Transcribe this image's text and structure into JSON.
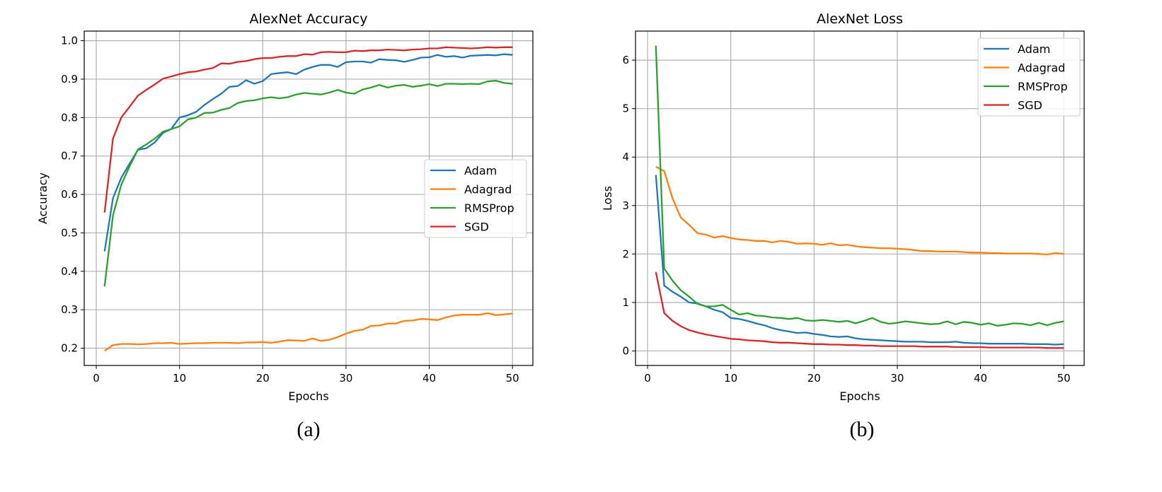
{
  "colors": {
    "Adam": "#1f77b4",
    "Adagrad": "#ff7f0e",
    "RMSProp": "#2ca02c",
    "SGD": "#d62728",
    "grid": "#b0b0b0"
  },
  "chart_data": [
    {
      "type": "line",
      "title": "AlexNet Accuracy",
      "xlabel": "Epochs",
      "ylabel": "Accuracy",
      "panel_label": "(a)",
      "xlim": [
        -1.45,
        52.45
      ],
      "ylim": [
        0.155,
        1.025
      ],
      "xticks": [
        0,
        10,
        20,
        30,
        40,
        50
      ],
      "yticks": [
        0.2,
        0.3,
        0.4,
        0.5,
        0.6,
        0.7,
        0.8,
        0.9,
        1.0
      ],
      "ytick_labels": [
        "0.2",
        "0.3",
        "0.4",
        "0.5",
        "0.6",
        "0.7",
        "0.8",
        "0.9",
        "1.0"
      ],
      "grid": true,
      "legend": "center-right",
      "x": [
        1,
        2,
        3,
        4,
        5,
        6,
        7,
        8,
        9,
        10,
        11,
        12,
        13,
        14,
        15,
        16,
        17,
        18,
        19,
        20,
        21,
        22,
        23,
        24,
        25,
        26,
        27,
        28,
        29,
        30,
        31,
        32,
        33,
        34,
        35,
        36,
        37,
        38,
        39,
        40,
        41,
        42,
        43,
        44,
        45,
        46,
        47,
        48,
        49,
        50
      ],
      "series": [
        {
          "name": "Adam",
          "values": [
            0.452,
            0.59,
            0.643,
            0.68,
            0.716,
            0.72,
            0.735,
            0.76,
            0.77,
            0.8,
            0.806,
            0.815,
            0.833,
            0.848,
            0.862,
            0.88,
            0.882,
            0.897,
            0.888,
            0.895,
            0.913,
            0.916,
            0.918,
            0.913,
            0.925,
            0.932,
            0.937,
            0.937,
            0.932,
            0.944,
            0.946,
            0.946,
            0.943,
            0.952,
            0.95,
            0.949,
            0.945,
            0.95,
            0.956,
            0.957,
            0.963,
            0.958,
            0.96,
            0.956,
            0.961,
            0.962,
            0.963,
            0.962,
            0.965,
            0.963
          ]
        },
        {
          "name": "Adagrad",
          "values": [
            0.193,
            0.208,
            0.211,
            0.211,
            0.21,
            0.211,
            0.213,
            0.213,
            0.214,
            0.211,
            0.212,
            0.213,
            0.213,
            0.214,
            0.214,
            0.214,
            0.213,
            0.215,
            0.215,
            0.216,
            0.214,
            0.217,
            0.221,
            0.22,
            0.219,
            0.225,
            0.219,
            0.222,
            0.229,
            0.238,
            0.245,
            0.248,
            0.258,
            0.259,
            0.264,
            0.264,
            0.271,
            0.272,
            0.276,
            0.275,
            0.273,
            0.28,
            0.285,
            0.287,
            0.287,
            0.287,
            0.291,
            0.286,
            0.288,
            0.29
          ]
        },
        {
          "name": "RMSProp",
          "values": [
            0.361,
            0.545,
            0.625,
            0.673,
            0.717,
            0.73,
            0.745,
            0.763,
            0.77,
            0.777,
            0.795,
            0.8,
            0.812,
            0.813,
            0.82,
            0.825,
            0.838,
            0.843,
            0.845,
            0.85,
            0.853,
            0.85,
            0.853,
            0.86,
            0.864,
            0.862,
            0.86,
            0.865,
            0.872,
            0.865,
            0.862,
            0.873,
            0.878,
            0.885,
            0.878,
            0.883,
            0.885,
            0.88,
            0.883,
            0.887,
            0.882,
            0.888,
            0.888,
            0.887,
            0.888,
            0.887,
            0.894,
            0.896,
            0.89,
            0.888
          ]
        },
        {
          "name": "SGD",
          "values": [
            0.553,
            0.745,
            0.8,
            0.828,
            0.857,
            0.872,
            0.886,
            0.901,
            0.907,
            0.913,
            0.918,
            0.92,
            0.925,
            0.929,
            0.941,
            0.94,
            0.945,
            0.947,
            0.952,
            0.955,
            0.955,
            0.958,
            0.96,
            0.96,
            0.965,
            0.964,
            0.97,
            0.971,
            0.97,
            0.97,
            0.974,
            0.973,
            0.975,
            0.975,
            0.977,
            0.976,
            0.975,
            0.977,
            0.978,
            0.98,
            0.98,
            0.983,
            0.982,
            0.981,
            0.98,
            0.981,
            0.983,
            0.982,
            0.983,
            0.983
          ]
        }
      ]
    },
    {
      "type": "line",
      "title": "AlexNet Loss",
      "xlabel": "Epochs",
      "ylabel": "Loss",
      "panel_label": "(b)",
      "xlim": [
        -1.45,
        52.45
      ],
      "ylim": [
        -0.3,
        6.6
      ],
      "xticks": [
        0,
        10,
        20,
        30,
        40,
        50
      ],
      "yticks": [
        0,
        1,
        2,
        3,
        4,
        5,
        6
      ],
      "ytick_labels": [
        "0",
        "1",
        "2",
        "3",
        "4",
        "5",
        "6"
      ],
      "grid": true,
      "legend": "top-right",
      "x": [
        1,
        2,
        3,
        4,
        5,
        6,
        7,
        8,
        9,
        10,
        11,
        12,
        13,
        14,
        15,
        16,
        17,
        18,
        19,
        20,
        21,
        22,
        23,
        24,
        25,
        26,
        27,
        28,
        29,
        30,
        31,
        32,
        33,
        34,
        35,
        36,
        37,
        38,
        39,
        40,
        41,
        42,
        43,
        44,
        45,
        46,
        47,
        48,
        49,
        50
      ],
      "series": [
        {
          "name": "Adam",
          "values": [
            3.63,
            1.35,
            1.22,
            1.12,
            1.0,
            0.98,
            0.92,
            0.85,
            0.8,
            0.68,
            0.66,
            0.62,
            0.57,
            0.53,
            0.47,
            0.43,
            0.4,
            0.37,
            0.38,
            0.35,
            0.33,
            0.3,
            0.29,
            0.3,
            0.26,
            0.24,
            0.23,
            0.22,
            0.21,
            0.2,
            0.19,
            0.19,
            0.19,
            0.18,
            0.18,
            0.18,
            0.19,
            0.17,
            0.16,
            0.16,
            0.15,
            0.15,
            0.15,
            0.15,
            0.15,
            0.14,
            0.14,
            0.14,
            0.13,
            0.14
          ]
        },
        {
          "name": "Adagrad",
          "values": [
            3.8,
            3.71,
            3.15,
            2.75,
            2.6,
            2.43,
            2.4,
            2.34,
            2.37,
            2.33,
            2.3,
            2.29,
            2.27,
            2.27,
            2.24,
            2.27,
            2.25,
            2.21,
            2.22,
            2.21,
            2.19,
            2.22,
            2.18,
            2.19,
            2.16,
            2.14,
            2.13,
            2.12,
            2.12,
            2.11,
            2.1,
            2.08,
            2.06,
            2.06,
            2.05,
            2.05,
            2.05,
            2.04,
            2.03,
            2.03,
            2.02,
            2.02,
            2.01,
            2.01,
            2.01,
            2.01,
            2.0,
            1.99,
            2.02,
            2.0
          ]
        },
        {
          "name": "RMSProp",
          "values": [
            6.3,
            1.7,
            1.45,
            1.25,
            1.12,
            0.97,
            0.92,
            0.92,
            0.95,
            0.85,
            0.75,
            0.78,
            0.73,
            0.72,
            0.69,
            0.68,
            0.66,
            0.68,
            0.63,
            0.62,
            0.64,
            0.62,
            0.6,
            0.62,
            0.57,
            0.62,
            0.68,
            0.6,
            0.56,
            0.58,
            0.61,
            0.59,
            0.57,
            0.55,
            0.56,
            0.61,
            0.55,
            0.6,
            0.58,
            0.54,
            0.57,
            0.52,
            0.54,
            0.57,
            0.56,
            0.53,
            0.58,
            0.53,
            0.58,
            0.61
          ]
        },
        {
          "name": "SGD",
          "values": [
            1.63,
            0.78,
            0.62,
            0.51,
            0.43,
            0.38,
            0.34,
            0.31,
            0.28,
            0.25,
            0.24,
            0.22,
            0.21,
            0.2,
            0.18,
            0.17,
            0.17,
            0.16,
            0.15,
            0.14,
            0.14,
            0.13,
            0.13,
            0.12,
            0.12,
            0.11,
            0.11,
            0.1,
            0.1,
            0.1,
            0.1,
            0.1,
            0.09,
            0.09,
            0.09,
            0.09,
            0.08,
            0.08,
            0.08,
            0.08,
            0.07,
            0.07,
            0.07,
            0.07,
            0.07,
            0.07,
            0.07,
            0.06,
            0.06,
            0.06
          ]
        }
      ]
    }
  ]
}
